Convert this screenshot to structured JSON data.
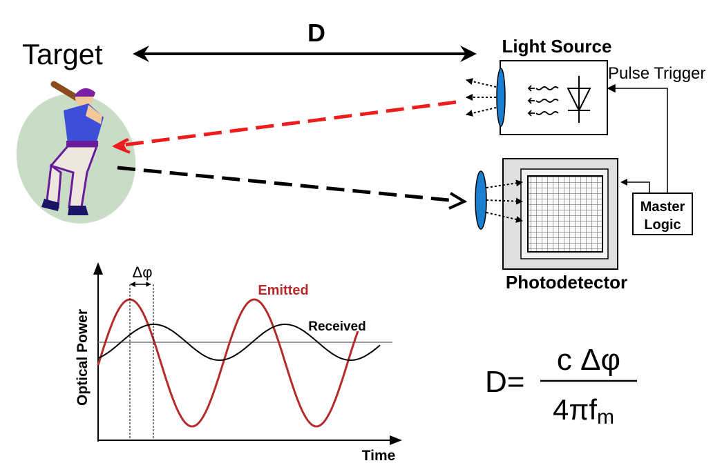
{
  "labels": {
    "distance": "D",
    "target": "Target",
    "light_source": "Light Source",
    "pulse_trigger": "Pulse Trigger",
    "master_logic_line1": "Master",
    "master_logic_line2": "Logic",
    "photodetector": "Photodetector"
  },
  "chart": {
    "ylabel": "Optical Power",
    "xlabel": "Time",
    "phase_label": "Δφ",
    "emitted_label": "Emitted",
    "received_label": "Received"
  },
  "equation": {
    "lhs": "D=",
    "numerator": "c Δφ",
    "denominator_main": "4πf",
    "denominator_sub": "m"
  },
  "colors": {
    "emitted": "#b52b2b",
    "received": "#000000",
    "outgoing_beam": "#ee1c1c",
    "return_beam": "#000000",
    "lens": "#1a7fd1",
    "target_ellipse": "#c9dcc5",
    "photodetector_body": "#e0e0e0"
  }
}
